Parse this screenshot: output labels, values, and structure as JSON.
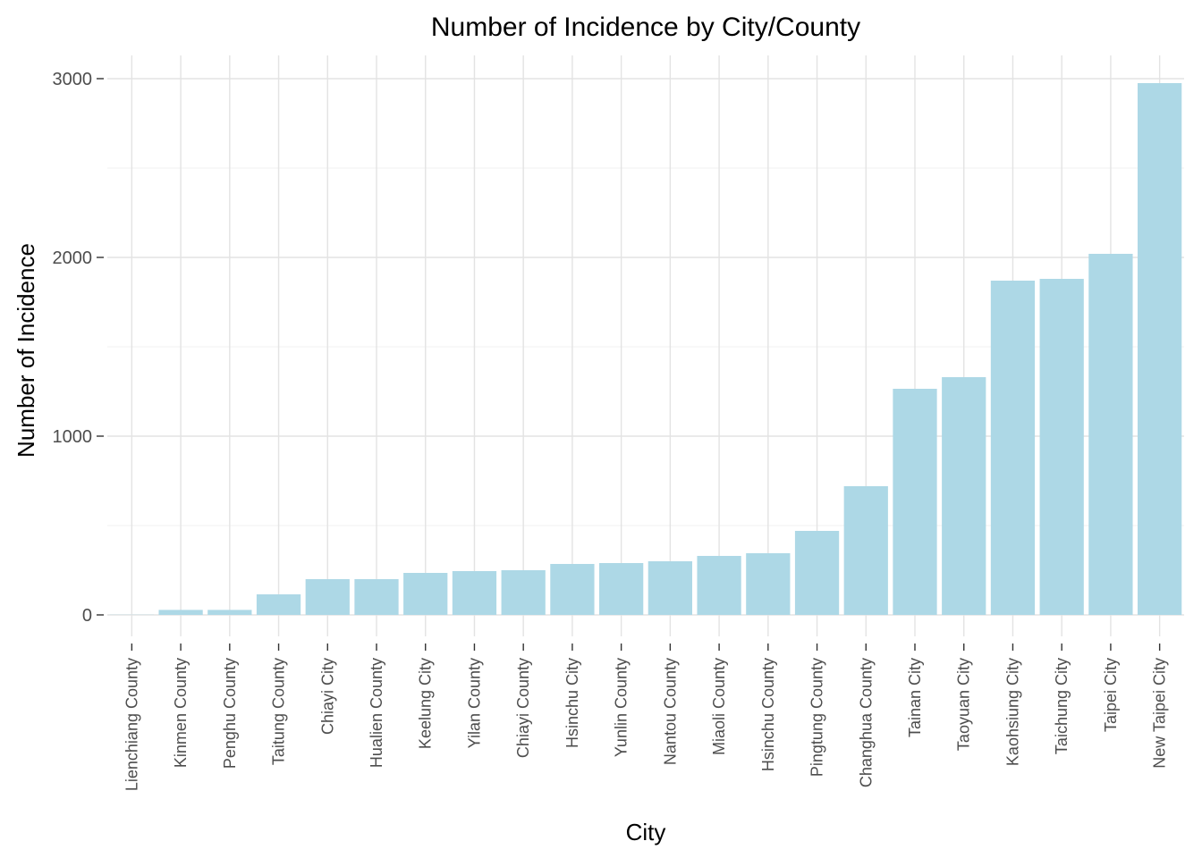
{
  "chart_data": {
    "type": "bar",
    "title": "Number of Incidence by City/County",
    "xlabel": "City",
    "ylabel": "Number of Incidence",
    "categories": [
      "Lienchiang County",
      "Kinmen County",
      "Penghu County",
      "Taitung County",
      "Chiayi City",
      "Hualien County",
      "Keelung City",
      "Yilan County",
      "Chiayi County",
      "Hsinchu City",
      "Yunlin County",
      "Nantou County",
      "Miaoli County",
      "Hsinchu County",
      "Pingtung County",
      "Changhua County",
      "Tainan City",
      "Taoyuan City",
      "Kaohsiung City",
      "Taichung City",
      "Taipei City",
      "New Taipei City"
    ],
    "values": [
      1,
      28,
      28,
      115,
      200,
      200,
      235,
      245,
      250,
      285,
      290,
      300,
      330,
      345,
      470,
      720,
      1265,
      1330,
      1870,
      1880,
      2020,
      2975
    ],
    "ylim": [
      -120,
      3130
    ],
    "yticks": [
      0,
      1000,
      2000,
      3000
    ],
    "yticks_minor": [
      500,
      1500,
      2500
    ],
    "grid": true,
    "legend": "none",
    "bar_color": "#add8e6"
  }
}
